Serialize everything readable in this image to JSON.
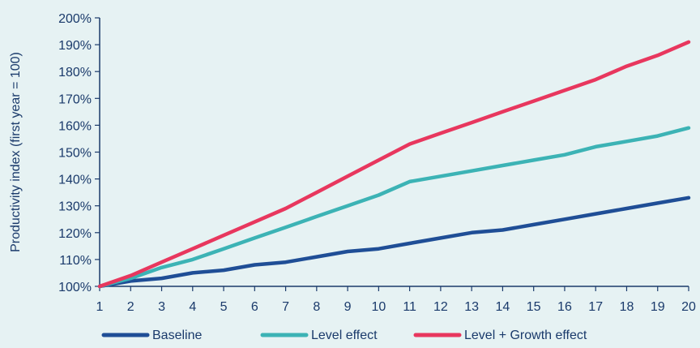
{
  "chart_data": {
    "type": "line",
    "title": "",
    "xlabel": "",
    "ylabel": "Productivity index (first year = 100)",
    "x": [
      1,
      2,
      3,
      4,
      5,
      6,
      7,
      8,
      9,
      10,
      11,
      12,
      13,
      14,
      15,
      16,
      17,
      18,
      19,
      20
    ],
    "xlim": [
      1,
      20
    ],
    "ylim": [
      100,
      200
    ],
    "y_ticks": [
      "100%",
      "110%",
      "120%",
      "130%",
      "140%",
      "150%",
      "160%",
      "170%",
      "180%",
      "190%",
      "200%"
    ],
    "x_ticks": [
      "1",
      "2",
      "3",
      "4",
      "5",
      "6",
      "7",
      "8",
      "9",
      "10",
      "11",
      "12",
      "13",
      "14",
      "15",
      "16",
      "17",
      "18",
      "19",
      "20"
    ],
    "grid": false,
    "legend_position": "bottom",
    "series": [
      {
        "name": "Baseline",
        "color": "#1f4e96",
        "values": [
          100,
          102,
          103,
          105,
          106,
          108,
          109,
          111,
          113,
          114,
          116,
          118,
          120,
          121,
          123,
          125,
          127,
          129,
          131,
          133
        ]
      },
      {
        "name": "Level effect",
        "color": "#3cb3b5",
        "values": [
          100,
          103,
          107,
          110,
          114,
          118,
          122,
          126,
          130,
          134,
          139,
          141,
          143,
          145,
          147,
          149,
          152,
          154,
          156,
          159
        ]
      },
      {
        "name": "Level + Growth effect",
        "color": "#e8375e",
        "values": [
          100,
          104,
          109,
          114,
          119,
          124,
          129,
          135,
          141,
          147,
          153,
          157,
          161,
          165,
          169,
          173,
          177,
          182,
          186,
          191
        ]
      }
    ]
  }
}
